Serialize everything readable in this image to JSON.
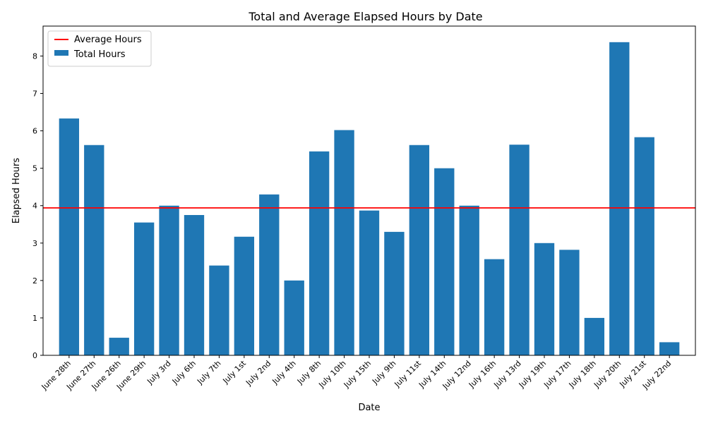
{
  "chart_data": {
    "type": "bar",
    "title": "Total and Average Elapsed Hours by Date",
    "xlabel": "Date",
    "ylabel": "Elapsed Hours",
    "ylim": [
      0,
      8.8
    ],
    "yticks": [
      0,
      1,
      2,
      3,
      4,
      5,
      6,
      7,
      8
    ],
    "grid": false,
    "legend_placement": "top-left",
    "categories": [
      "June 28th",
      "June 27th",
      "June 26th",
      "June 29th",
      "July 3rd",
      "July 6th",
      "July 7th",
      "July 1st",
      "July 2nd",
      "July 4th",
      "July 8th",
      "July 10th",
      "July 15th",
      "July 9th",
      "July 11st",
      "July 14th",
      "July 12nd",
      "July 16th",
      "July 13rd",
      "July 19th",
      "July 17th",
      "July 18th",
      "July 20th",
      "July 21st",
      "July 22nd"
    ],
    "series": [
      {
        "name": "Total Hours",
        "type": "bar",
        "color": "#1f77b4",
        "values": [
          6.33,
          5.62,
          0.47,
          3.55,
          4.0,
          3.75,
          2.4,
          3.17,
          4.3,
          2.0,
          5.45,
          6.02,
          3.87,
          3.3,
          5.62,
          5.0,
          4.0,
          2.57,
          5.63,
          3.0,
          2.82,
          1.0,
          8.37,
          5.83,
          0.35
        ]
      },
      {
        "name": "Average Hours",
        "type": "hline",
        "color": "#ff0000",
        "value": 3.94
      }
    ]
  }
}
